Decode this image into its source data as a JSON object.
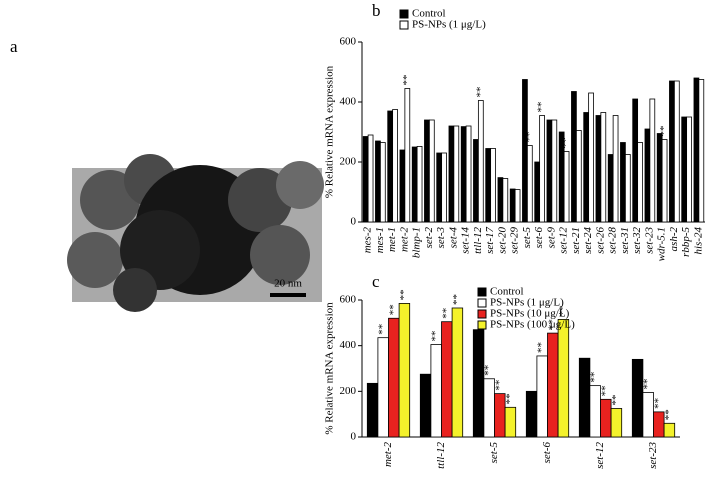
{
  "panel_a": {
    "label": "a",
    "scale_bar": "20 nm"
  },
  "chart_data": [
    {
      "type": "bar",
      "panel_label": "b",
      "y_label": "% Relative mRNA expression",
      "legend": "upper left",
      "categories": [
        "mes-2",
        "mes-1",
        "met-1",
        "met-2",
        "blmp-1",
        "set-2",
        "set-3",
        "set-4",
        "set-14",
        "ttll-12",
        "set-17",
        "set-20",
        "set-29",
        "set-5",
        "set-6",
        "set-9",
        "set-12",
        "set-21",
        "set-24",
        "set-26",
        "set-28",
        "set-31",
        "set-32",
        "set-23",
        "wdr-5.1",
        "ash-2",
        "rbbp-5",
        "his-24"
      ],
      "ylim": [
        0,
        600
      ],
      "yticks": [
        0,
        200,
        400,
        600
      ],
      "series": [
        {
          "name": "Control",
          "color": "#000000",
          "values": [
            285,
            270,
            370,
            240,
            250,
            340,
            230,
            320,
            318,
            275,
            245,
            148,
            110,
            475,
            200,
            340,
            300,
            435,
            365,
            355,
            225,
            265,
            410,
            310,
            295,
            470,
            350,
            480
          ],
          "significance": [
            null,
            null,
            null,
            null,
            null,
            null,
            null,
            null,
            null,
            null,
            null,
            null,
            null,
            null,
            null,
            null,
            null,
            null,
            null,
            null,
            null,
            null,
            null,
            null,
            null,
            null,
            null,
            null
          ]
        },
        {
          "name": "PS-NPs (1 μg/L)",
          "color": "#ffffff",
          "values": [
            290,
            265,
            375,
            445,
            252,
            340,
            230,
            320,
            320,
            405,
            245,
            145,
            108,
            255,
            355,
            340,
            235,
            305,
            430,
            365,
            355,
            225,
            265,
            410,
            275,
            470,
            350,
            475
          ],
          "significance": [
            null,
            null,
            null,
            "**",
            null,
            null,
            null,
            null,
            null,
            "**",
            null,
            null,
            null,
            "**",
            "**",
            null,
            "**",
            null,
            null,
            null,
            null,
            null,
            null,
            null,
            "**",
            null,
            null,
            null
          ]
        }
      ]
    },
    {
      "type": "bar",
      "panel_label": "c",
      "y_label": "% Relative mRNA expression",
      "legend": "upper right",
      "categories": [
        "met-2",
        "ttll-12",
        "set-5",
        "set-6",
        "set-12",
        "set-23"
      ],
      "ylim": [
        0,
        600
      ],
      "yticks": [
        0,
        200,
        400,
        600
      ],
      "series": [
        {
          "name": "Control",
          "color": "#000000",
          "values": [
            235,
            275,
            470,
            200,
            345,
            340
          ],
          "significance": [
            null,
            null,
            null,
            null,
            null,
            null
          ]
        },
        {
          "name": "PS-NPs (1 μg/L)",
          "color": "#ffffff",
          "values": [
            435,
            405,
            255,
            355,
            225,
            195
          ],
          "significance": [
            "**",
            "**",
            "**",
            "**",
            "**",
            "**"
          ]
        },
        {
          "name": "PS-NPs (10 μg/L)",
          "color": "#e8221f",
          "values": [
            520,
            505,
            190,
            455,
            165,
            110
          ],
          "significance": [
            "**",
            "**",
            "**",
            "**",
            "**",
            "**"
          ]
        },
        {
          "name": "PS-NPs (100 μg/L)",
          "color": "#f4f22b",
          "values": [
            585,
            565,
            130,
            515,
            125,
            60
          ],
          "significance": [
            "**",
            "**",
            "**",
            "**",
            "**",
            "**"
          ]
        }
      ]
    }
  ]
}
